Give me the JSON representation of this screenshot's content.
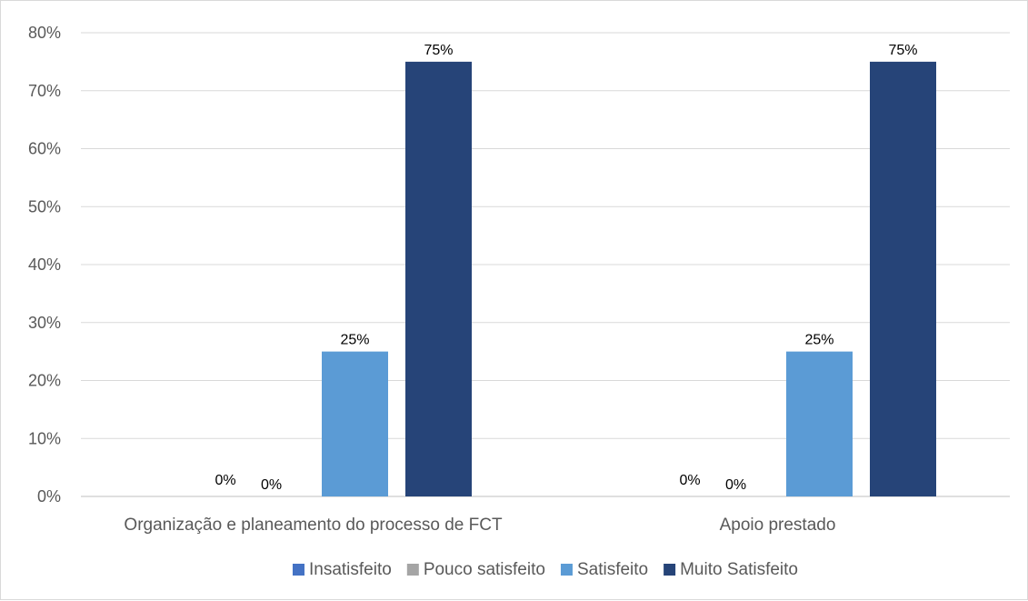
{
  "chart_data": {
    "type": "bar",
    "categories": [
      "Organização e planeamento do processo de FCT",
      "Apoio prestado"
    ],
    "series": [
      {
        "name": "Insatisfeito",
        "values": [
          0,
          0
        ],
        "color": "#4472c4",
        "show_label": false
      },
      {
        "name": "Pouco satisfeito",
        "values": [
          0,
          0
        ],
        "color": "#a5a5a5",
        "show_label": true
      },
      {
        "name": "Satisfeito",
        "values": [
          25,
          25
        ],
        "color": "#5b9bd5",
        "show_label": true
      },
      {
        "name": "Muito Satisfeito",
        "values": [
          75,
          75
        ],
        "color": "#264478",
        "show_label": true
      }
    ],
    "extra_labels": [
      {
        "category_index": 0,
        "series_index": 0,
        "text": "0%"
      },
      {
        "category_index": 1,
        "series_index": 0,
        "text": "0%"
      }
    ],
    "value_suffix": "%",
    "ylim": [
      0,
      80
    ],
    "yticks": [
      0,
      10,
      20,
      30,
      40,
      50,
      60,
      70,
      80
    ],
    "ytick_labels": [
      "0%",
      "10%",
      "20%",
      "30%",
      "40%",
      "50%",
      "60%",
      "70%",
      "80%"
    ],
    "grid": true,
    "legend_position": "bottom",
    "title": "",
    "xlabel": "",
    "ylabel": ""
  }
}
